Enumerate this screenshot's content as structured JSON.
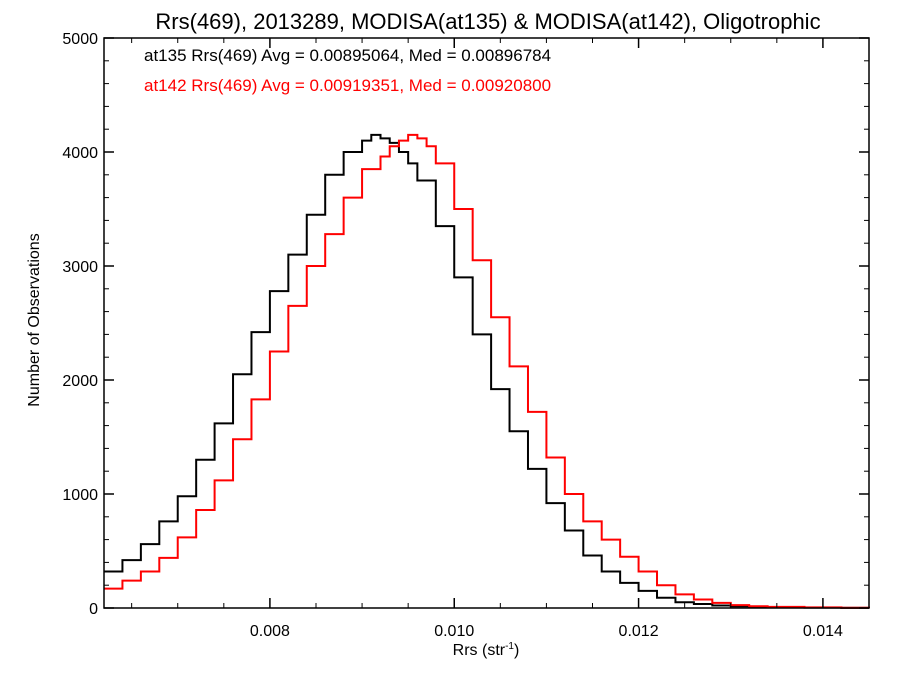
{
  "chart_data": {
    "type": "line",
    "title": "Rrs(469), 2013289, MODISA(at135) & MODISA(at142), Oligotrophic",
    "xlabel": "Rrs (str",
    "xlabel_sup": "-1",
    "xlabel_suffix": ")",
    "ylabel": "Number of Observations",
    "xlim": [
      0.0062,
      0.0145
    ],
    "ylim": [
      0,
      5000
    ],
    "xticks": [
      0.008,
      0.01,
      0.012,
      0.014
    ],
    "xtick_labels": [
      "0.008",
      "0.010",
      "0.012",
      "0.014"
    ],
    "yticks": [
      0,
      1000,
      2000,
      3000,
      4000,
      5000
    ],
    "ytick_labels": [
      "0",
      "1000",
      "2000",
      "3000",
      "4000",
      "5000"
    ],
    "grid": false,
    "legend_position": "top-left",
    "legend_entries": [
      "at135 Rrs(469) Avg = 0.00895064, Med = 0.00896784",
      "at142 Rrs(469) Avg = 0.00919351, Med = 0.00920800"
    ],
    "series": [
      {
        "name": "at135 Rrs(469) Avg = 0.00895064, Med = 0.00896784",
        "color": "#000000",
        "x": [
          0.0062,
          0.0064,
          0.0066,
          0.0068,
          0.007,
          0.0072,
          0.0074,
          0.0076,
          0.0078,
          0.008,
          0.0082,
          0.0084,
          0.0086,
          0.0088,
          0.009,
          0.0091,
          0.0092,
          0.0093,
          0.0094,
          0.0095,
          0.0096,
          0.0098,
          0.01,
          0.0102,
          0.0104,
          0.0106,
          0.0108,
          0.011,
          0.0112,
          0.0114,
          0.0116,
          0.0118,
          0.012,
          0.0122,
          0.0124,
          0.0126,
          0.0128,
          0.013,
          0.0132,
          0.0134,
          0.0138,
          0.0142,
          0.0145
        ],
        "y": [
          320,
          420,
          560,
          760,
          980,
          1300,
          1620,
          2050,
          2420,
          2780,
          3100,
          3450,
          3800,
          4000,
          4100,
          4150,
          4120,
          4080,
          4000,
          3900,
          3750,
          3350,
          2900,
          2400,
          1920,
          1550,
          1220,
          920,
          680,
          460,
          320,
          220,
          150,
          90,
          50,
          35,
          22,
          14,
          10,
          6,
          3,
          1,
          0
        ]
      },
      {
        "name": "at142 Rrs(469) Avg = 0.00919351, Med = 0.00920800",
        "color": "#ff0000",
        "x": [
          0.0062,
          0.0064,
          0.0066,
          0.0068,
          0.007,
          0.0072,
          0.0074,
          0.0076,
          0.0078,
          0.008,
          0.0082,
          0.0084,
          0.0086,
          0.0088,
          0.009,
          0.0092,
          0.0093,
          0.0094,
          0.0095,
          0.0096,
          0.0097,
          0.0098,
          0.01,
          0.0102,
          0.0104,
          0.0106,
          0.0108,
          0.011,
          0.0112,
          0.0114,
          0.0116,
          0.0118,
          0.012,
          0.0122,
          0.0124,
          0.0126,
          0.0128,
          0.013,
          0.0132,
          0.0134,
          0.0138,
          0.0142,
          0.0145
        ],
        "y": [
          170,
          240,
          320,
          440,
          620,
          860,
          1120,
          1480,
          1830,
          2250,
          2650,
          3000,
          3280,
          3600,
          3850,
          3960,
          4050,
          4100,
          4150,
          4120,
          4050,
          3900,
          3500,
          3050,
          2550,
          2120,
          1720,
          1320,
          1000,
          760,
          600,
          450,
          320,
          200,
          120,
          75,
          45,
          25,
          15,
          10,
          5,
          2,
          0
        ]
      }
    ]
  }
}
